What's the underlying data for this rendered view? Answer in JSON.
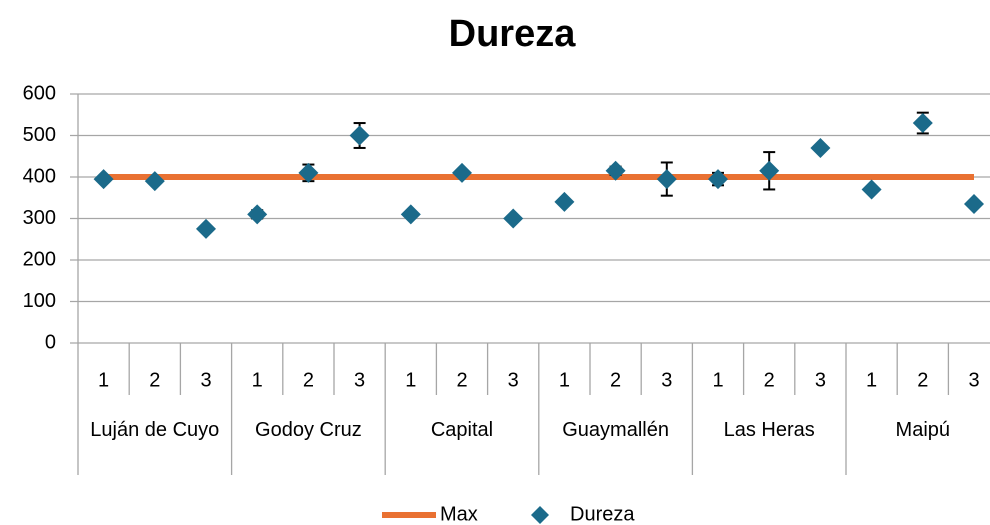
{
  "chart_data": {
    "type": "scatter",
    "title": "Dureza",
    "categories": [
      "1",
      "2",
      "3",
      "1",
      "2",
      "3",
      "1",
      "2",
      "3",
      "1",
      "2",
      "3",
      "1",
      "2",
      "3",
      "1",
      "2",
      "3"
    ],
    "groups": [
      "Luján de Cuyo",
      "Godoy Cruz",
      "Capital",
      "Guaymallén",
      "Las Heras",
      "Maipú"
    ],
    "series": [
      {
        "name": "Max",
        "color": "#e97132",
        "type": "line",
        "values": [
          400,
          400,
          400,
          400,
          400,
          400,
          400,
          400,
          400,
          400,
          400,
          400,
          400,
          400,
          400,
          400,
          400,
          400
        ]
      },
      {
        "name": "Dureza",
        "color": "#1b6a8a",
        "type": "scatter",
        "values": [
          395,
          390,
          275,
          310,
          410,
          500,
          310,
          410,
          300,
          340,
          415,
          395,
          395,
          415,
          470,
          370,
          530,
          335
        ],
        "errors": [
          5,
          5,
          0,
          10,
          20,
          30,
          0,
          5,
          0,
          0,
          10,
          40,
          15,
          45,
          5,
          0,
          25,
          0
        ]
      }
    ],
    "ylim": [
      0,
      600
    ],
    "yticks": [
      0,
      100,
      200,
      300,
      400,
      500,
      600
    ],
    "grid": true,
    "legend": "bottom"
  }
}
